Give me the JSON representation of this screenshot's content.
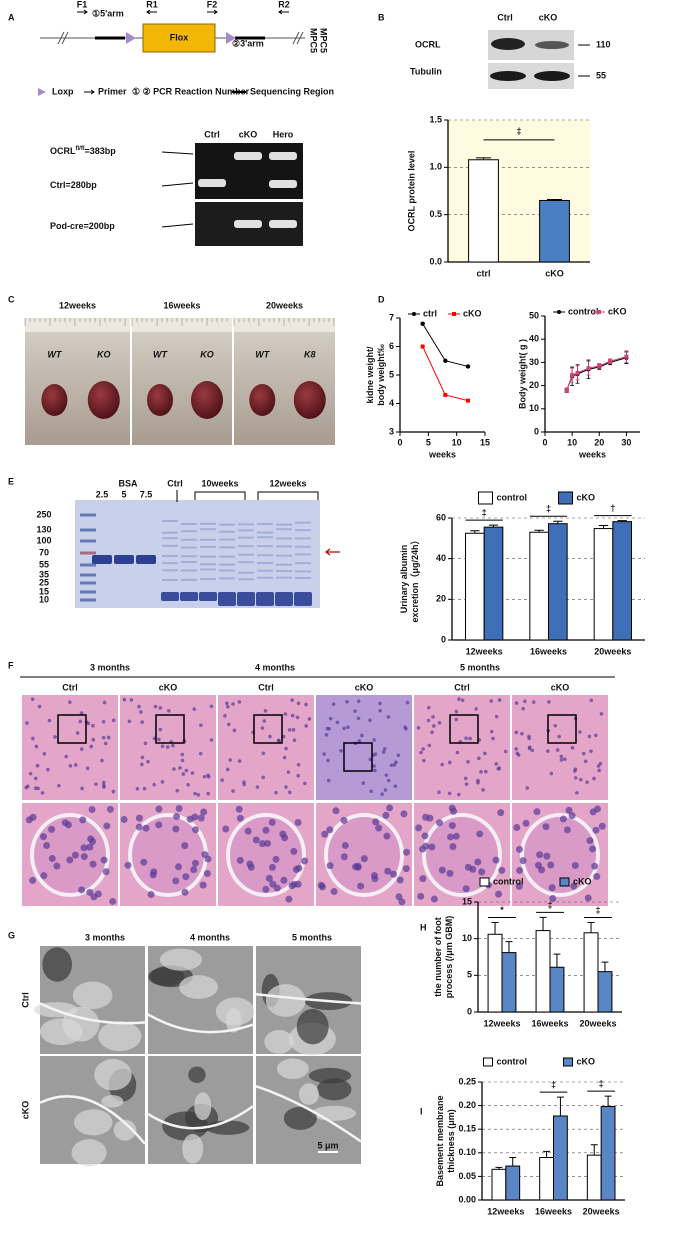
{
  "panel_letters": [
    "A",
    "B",
    "C",
    "D",
    "E",
    "F",
    "G",
    "H",
    "I"
  ],
  "gene_diagram": {
    "primers": [
      "F1",
      "R1",
      "F2",
      "R2"
    ],
    "arms": [
      "①5'arm",
      "②3'arm"
    ],
    "flox": "Flox",
    "cell_line": [
      "MPC5",
      "MPC5"
    ],
    "legend": [
      "Loxp",
      "Primer",
      "① ② PCR Reaction Number",
      "Sequencing Region"
    ]
  },
  "genotyping_gel": {
    "lanes": [
      "Ctrl",
      "cKO",
      "Hero"
    ],
    "bands": [
      {
        "gene": "OCRL",
        "allele": "fl/fl",
        "size": "=383bp"
      },
      {
        "gene": "Ctrl",
        "size": "=280bp"
      },
      {
        "gene": "Pod-cre",
        "size": "=200bp"
      }
    ]
  },
  "western": {
    "lanes": [
      "Ctrl",
      "cKO"
    ],
    "proteins": [
      "OCRL",
      "Tubulin"
    ],
    "kda": [
      110,
      55
    ]
  },
  "kidney_photos": {
    "ages": [
      "12weeks",
      "16weeks",
      "20weeks"
    ],
    "tags": [
      [
        "WT",
        "KO"
      ],
      [
        "WT",
        "KO"
      ],
      [
        "WT",
        "K8"
      ]
    ]
  },
  "albumin_gel": {
    "standard": "BSA",
    "amounts": [
      2.5,
      5,
      7.5
    ],
    "lanes": [
      "Ctrl",
      "10weeks",
      "12weeks"
    ],
    "markers": [
      250,
      130,
      100,
      70,
      55,
      35,
      25,
      15,
      10
    ]
  },
  "histology": {
    "ages": [
      "3 months",
      "4 months",
      "5 months"
    ],
    "groups": [
      "Ctrl",
      "cKO"
    ]
  },
  "em": {
    "ages": [
      "3 months",
      "4 months",
      "5 months"
    ],
    "groups": [
      "Ctrl",
      "cKO"
    ],
    "scale": "5 μm"
  },
  "chart_data": [
    {
      "type": "bar",
      "ylabel": "OCRL protein level",
      "categories": [
        "ctrl",
        "cKO"
      ],
      "values": [
        1.08,
        0.65
      ],
      "errors": [
        0.02,
        0.01
      ],
      "colors": [
        "#ffffff",
        "#4a7fc1"
      ],
      "background": "#fffbe1",
      "ylim": [
        0,
        1.5
      ],
      "yticks": [
        {
          "value": 0,
          "label": "0.0"
        },
        0.5,
        {
          "value": 1,
          "label": "1.0"
        },
        1.5
      ],
      "grid": true,
      "annotations": [
        "‡"
      ]
    },
    {
      "type": "line",
      "ylabel": [
        "kidne weight/",
        "body weight‰"
      ],
      "xlabel": "weeks",
      "xlim": [
        0,
        15
      ],
      "xticks": [
        0,
        5,
        10,
        15
      ],
      "ylim": [
        3,
        7
      ],
      "yticks": [
        3,
        4,
        5,
        6,
        7
      ],
      "legend": "top",
      "series": [
        {
          "name": "ctrl",
          "color": "#000000",
          "x": [
            4,
            8,
            12
          ],
          "values": [
            6.8,
            5.5,
            5.3
          ]
        },
        {
          "name": "cKO",
          "color": "#ff0000",
          "x": [
            4,
            8,
            12
          ],
          "values": [
            6.0,
            4.3,
            4.1
          ]
        }
      ]
    },
    {
      "type": "line",
      "ylabel": "Body weight( g )",
      "xlabel": "weeks",
      "xlim": [
        0,
        35
      ],
      "xticks": [
        0,
        10,
        20,
        30
      ],
      "ylim": [
        0,
        50
      ],
      "yticks": [
        0,
        10,
        20,
        30,
        40,
        50
      ],
      "legend": "top",
      "series": [
        {
          "name": "control",
          "color": "#000000",
          "x": [
            8,
            10,
            12,
            16,
            20,
            24,
            30
          ],
          "values": [
            18,
            24,
            25,
            27,
            28,
            30,
            32
          ],
          "errors": [
            1,
            4,
            4,
            4,
            1,
            1,
            2.5
          ]
        },
        {
          "name": "cKO",
          "color": "#d0407a",
          "x": [
            8,
            10,
            12,
            16,
            20,
            24,
            30
          ],
          "values": [
            18,
            24.5,
            25.5,
            27.5,
            28.5,
            30.5,
            32.5
          ],
          "errors": [
            1,
            3,
            3,
            3,
            1,
            1,
            2.5
          ]
        }
      ]
    },
    {
      "type": "bar",
      "ylabel": [
        "Urinary albumin",
        "excretion（μg/24h）"
      ],
      "categories": [
        "12weeks",
        "16weeks",
        "20weeks"
      ],
      "ylim": [
        0,
        60
      ],
      "yticks": [
        0,
        20,
        40,
        60
      ],
      "grid": true,
      "legend": "top",
      "annotations": [
        "‡",
        "‡",
        "†"
      ],
      "series": [
        {
          "name": "control",
          "color": "#ffffff",
          "values": [
            52.5,
            53,
            54.8
          ],
          "errors": [
            1.2,
            1,
            1.5
          ]
        },
        {
          "name": "cKO",
          "color": "#3f6fb6",
          "values": [
            55.5,
            57.2,
            58.2
          ],
          "errors": [
            1,
            1.2,
            0.5
          ]
        }
      ]
    },
    {
      "type": "bar",
      "ylabel": [
        "the number of foot",
        "process (/μm GBM)"
      ],
      "categories": [
        "12weeks",
        "16weeks",
        "20weeks"
      ],
      "ylim": [
        0,
        15
      ],
      "yticks": [
        0,
        5,
        10,
        15
      ],
      "grid": true,
      "legend": "top",
      "annotations": [
        "*",
        "‡",
        "‡"
      ],
      "series": [
        {
          "name": "control",
          "color": "#ffffff",
          "values": [
            10.6,
            11.1,
            10.8
          ],
          "errors": [
            1.6,
            1.8,
            1.4
          ]
        },
        {
          "name": "cKO",
          "color": "#5b86c5",
          "values": [
            8.1,
            6.1,
            5.5
          ],
          "errors": [
            1.5,
            1.8,
            1.3
          ]
        }
      ]
    },
    {
      "type": "bar",
      "ylabel": [
        "Basement membrane",
        "thickness (μm)"
      ],
      "categories": [
        "12weeks",
        "16weeks",
        "20weeks"
      ],
      "ylim": [
        0,
        0.25
      ],
      "yticks": [
        {
          "value": 0,
          "label": "0.00"
        },
        {
          "value": 0.05,
          "label": "0.05"
        },
        {
          "value": 0.1,
          "label": "0.10"
        },
        {
          "value": 0.15,
          "label": "0.15"
        },
        {
          "value": 0.2,
          "label": "0.20"
        },
        {
          "value": 0.25,
          "label": "0.25"
        }
      ],
      "grid": true,
      "legend": "top",
      "annotations": [
        null,
        "‡",
        "‡"
      ],
      "series": [
        {
          "name": "control",
          "color": "#ffffff",
          "values": [
            0.065,
            0.09,
            0.095
          ],
          "errors": [
            0.004,
            0.013,
            0.022
          ]
        },
        {
          "name": "cKO",
          "color": "#5b86c5",
          "values": [
            0.072,
            0.178,
            0.198
          ],
          "errors": [
            0.018,
            0.04,
            0.022
          ]
        }
      ]
    }
  ]
}
